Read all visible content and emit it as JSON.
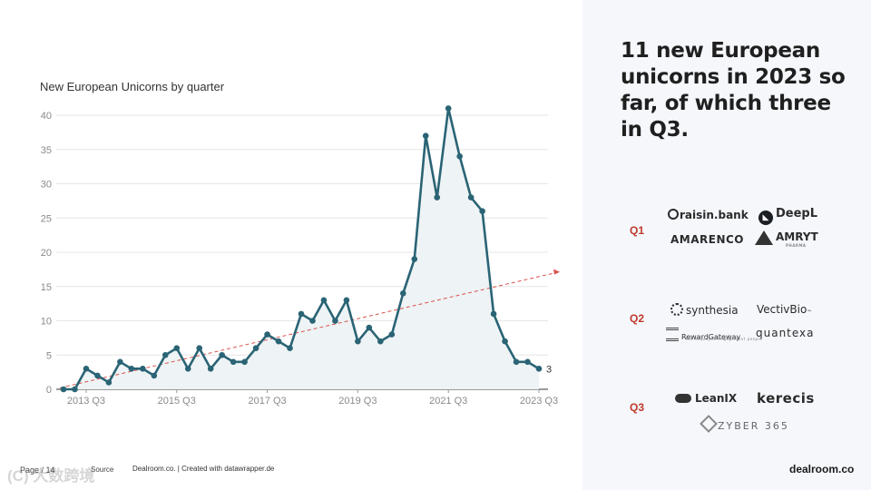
{
  "headline": "11 new European unicorns in 2023 so far, of which three in Q3.",
  "quarters": [
    {
      "label": "Q1",
      "logos": [
        "raisin.bank",
        "DeepL",
        "AMARENCO",
        "AMRYT"
      ],
      "sublogos": {
        "AMRYT": "PHARMA"
      }
    },
    {
      "label": "Q2",
      "logos": [
        "synthesia",
        "VectivBio",
        "RewardGateway",
        "quantexa"
      ],
      "sublogos": {
        "RewardGateway": "the employee engagement people"
      }
    },
    {
      "label": "Q3",
      "logos": [
        "LeanIX",
        "kerecis",
        "ZYBER 365"
      ],
      "sublogos": {}
    }
  ],
  "footer": {
    "page": "Page / 14",
    "source": "Source",
    "credit": "Dealroom.co. | Created with datawrapper.de",
    "brand": "dealroom.co",
    "watermark": "(C) 大数跨境"
  },
  "chart_data": {
    "type": "line",
    "title": "New European Unicorns by quarter",
    "xlabel": "",
    "ylabel": "",
    "ylim": [
      0,
      40
    ],
    "yticks": [
      0,
      5,
      10,
      15,
      20,
      25,
      30,
      35,
      40
    ],
    "xtick_labels": [
      "2013 Q3",
      "2015 Q3",
      "2017 Q3",
      "2019 Q3",
      "2021 Q3",
      "2023 Q3"
    ],
    "xtick_indices": [
      2,
      10,
      18,
      26,
      34,
      42
    ],
    "x_start": "2013 Q1",
    "x_end": "2023 Q3",
    "series": [
      {
        "name": "New European Unicorns",
        "color": "#2a6475",
        "values": [
          0,
          0,
          3,
          2,
          1,
          4,
          3,
          3,
          2,
          5,
          6,
          3,
          6,
          3,
          5,
          4,
          4,
          6,
          8,
          7,
          6,
          11,
          10,
          13,
          10,
          13,
          7,
          9,
          7,
          8,
          14,
          19,
          37,
          28,
          41,
          34,
          28,
          26,
          11,
          7,
          4,
          4,
          3
        ]
      }
    ],
    "trend": {
      "name": "trend",
      "color": "#d9534f",
      "start": 0.2,
      "end": 17
    },
    "end_label": "3"
  }
}
